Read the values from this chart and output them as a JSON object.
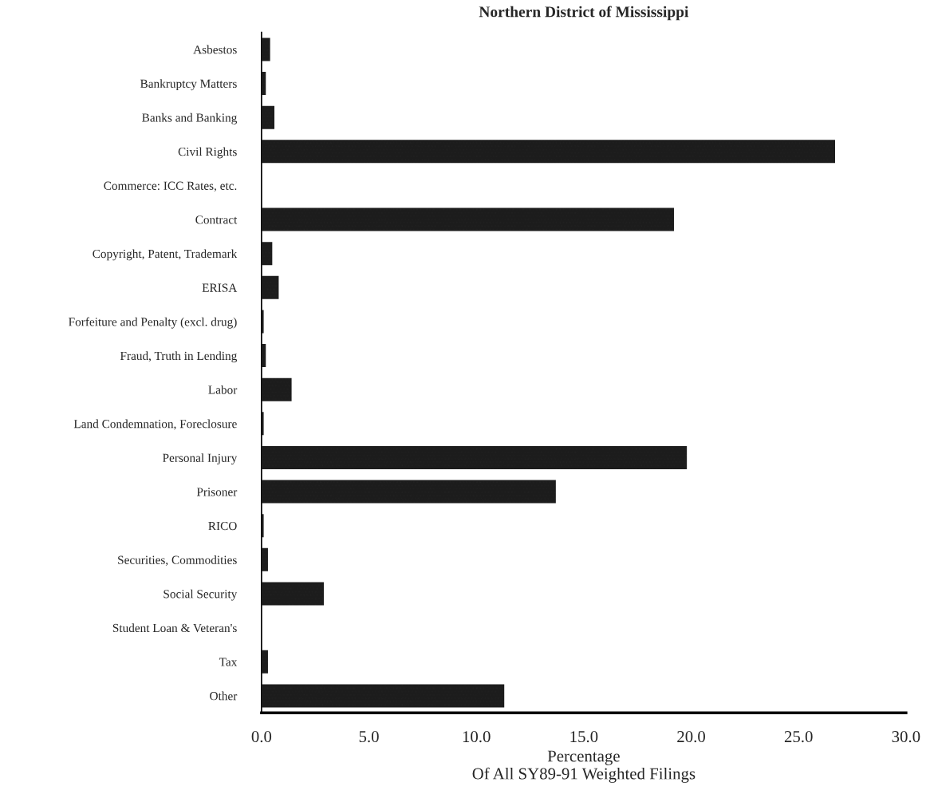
{
  "chart_data": {
    "type": "bar",
    "orientation": "horizontal",
    "title": "Northern District of Mississippi",
    "xlabel": "Percentage\nOf All SY89-91 Weighted Filings",
    "categories": [
      "Asbestos",
      "Bankruptcy Matters",
      "Banks and Banking",
      "Civil Rights",
      "Commerce: ICC Rates, etc.",
      "Contract",
      "Copyright, Patent, Trademark",
      "ERISA",
      "Forfeiture and Penalty (excl. drug)",
      "Fraud, Truth in Lending",
      "Labor",
      "Land Condemnation, Foreclosure",
      "Personal Injury",
      "Prisoner",
      "RICO",
      "Securities, Commodities",
      "Social Security",
      "Student Loan & Veteran's",
      "Tax",
      "Other"
    ],
    "values": [
      0.4,
      0.2,
      0.6,
      26.7,
      0,
      19.2,
      0.5,
      0.8,
      0.1,
      0.2,
      1.4,
      0.1,
      19.8,
      13.7,
      0.1,
      0.3,
      2.9,
      0,
      0.3,
      11.3
    ],
    "color": "#1c1c1c",
    "xlim": [
      0,
      30
    ],
    "xticks": [
      {
        "value": 0,
        "label": "0.0"
      },
      {
        "value": 5,
        "label": "5.0"
      },
      {
        "value": 10,
        "label": "10.0"
      },
      {
        "value": 15,
        "label": "15.0"
      },
      {
        "value": 20,
        "label": "20.0"
      },
      {
        "value": 25,
        "label": "25.0"
      },
      {
        "value": 30,
        "label": "30.0"
      }
    ],
    "grid": false,
    "legend": false
  }
}
